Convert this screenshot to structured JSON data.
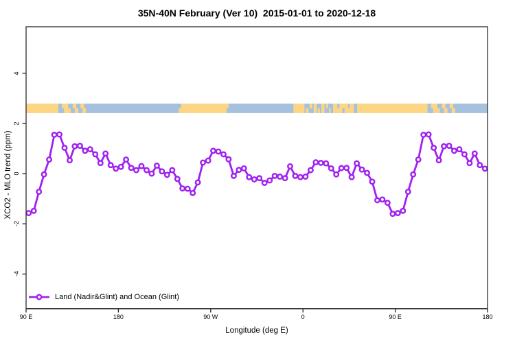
{
  "title": "35N-40N February (Ver 10)  2015-01-01 to 2020-12-18",
  "chart_data": {
    "type": "line",
    "title": "35N-40N February (Ver 10)  2015-01-01 to 2020-12-18",
    "xlabel": "Longitude (deg E)",
    "ylabel": "XCO2 - MLO trend (ppm)",
    "grid": false,
    "x_axis": {
      "lim": [
        90,
        540
      ],
      "note": "longitude axis wraps eastward from 90E through 180, 90W, 0, back to 90E and 180",
      "ticks": [
        {
          "deg": 90,
          "label": "90 E"
        },
        {
          "deg": 180,
          "label": "180"
        },
        {
          "deg": 270,
          "label": "90 W"
        },
        {
          "deg": 360,
          "label": "0"
        },
        {
          "deg": 450,
          "label": "90 E"
        },
        {
          "deg": 540,
          "label": "180"
        }
      ]
    },
    "y_axis": {
      "lim": [
        -5.38,
        5.85
      ],
      "ticks": [
        {
          "v": 4,
          "label": "4"
        },
        {
          "v": 2,
          "label": "2"
        },
        {
          "v": 0,
          "label": "0"
        },
        {
          "v": -2,
          "label": "-2"
        },
        {
          "v": -4,
          "label": "-4"
        }
      ]
    },
    "series": [
      {
        "name": "Land (Nadir&Glint) and Ocean (Glint)",
        "color": "#A020F0",
        "marker": "open-circle",
        "x_start_deg": 92.5,
        "x_step_deg": 5,
        "values": [
          -1.57,
          -1.48,
          -0.72,
          -0.03,
          0.56,
          1.55,
          1.56,
          1.03,
          0.53,
          1.09,
          1.11,
          0.91,
          0.97,
          0.77,
          0.42,
          0.8,
          0.34,
          0.2,
          0.27,
          0.56,
          0.23,
          0.14,
          0.3,
          0.14,
          0.0,
          0.32,
          0.09,
          -0.05,
          0.14,
          -0.21,
          -0.59,
          -0.6,
          -0.77,
          -0.35,
          0.44,
          0.52,
          0.91,
          0.88,
          0.77,
          0.57,
          -0.09,
          0.15,
          0.21,
          -0.14,
          -0.23,
          -0.18,
          -0.37,
          -0.27,
          -0.09,
          -0.12,
          -0.18,
          0.29,
          -0.09,
          -0.14,
          -0.12,
          0.14,
          0.45,
          0.43,
          0.41,
          0.21,
          -0.03,
          0.22,
          0.23,
          -0.14,
          0.41,
          0.16,
          0.03,
          -0.32,
          -1.06,
          -1.03,
          -1.16,
          -1.6,
          -1.57,
          -1.48,
          -0.72,
          -0.03,
          0.56,
          1.55,
          1.56,
          1.03,
          0.53,
          1.09,
          1.11,
          0.91,
          0.97,
          0.77,
          0.42,
          0.8,
          0.34,
          0.2
        ]
      }
    ],
    "map_band": {
      "description": "land/ocean strip at 35N-40N along the longitude axis",
      "value_range": [
        2.41,
        2.79
      ],
      "ocean_color": "#a6c1dd",
      "land_color": "#fcd685",
      "land_segments": [
        {
          "from": 90,
          "to": 121.5,
          "part": "full"
        },
        {
          "from": 124.8,
          "to": 131,
          "part": "top"
        },
        {
          "from": 127,
          "to": 133.5,
          "part": "bottom"
        },
        {
          "from": 135.5,
          "to": 139,
          "part": "top"
        },
        {
          "from": 137.5,
          "to": 140.9,
          "part": "bottom"
        },
        {
          "from": 143,
          "to": 146.5,
          "part": "top"
        },
        {
          "from": 145,
          "to": 148.5,
          "part": "bottom"
        },
        {
          "from": 238.8,
          "to": 241,
          "part": "bottom"
        },
        {
          "from": 241,
          "to": 285.5,
          "part": "full"
        },
        {
          "from": 285.5,
          "to": 287.5,
          "part": "top"
        },
        {
          "from": 350.7,
          "to": 361.5,
          "part": "full"
        },
        {
          "from": 363,
          "to": 365.5,
          "part": "bottom"
        },
        {
          "from": 366.5,
          "to": 369,
          "part": "top"
        },
        {
          "from": 370.5,
          "to": 373.5,
          "part": "full"
        },
        {
          "from": 374.5,
          "to": 376.5,
          "part": "bottom"
        },
        {
          "from": 378,
          "to": 381,
          "part": "full"
        },
        {
          "from": 382.5,
          "to": 384.5,
          "part": "top"
        },
        {
          "from": 385.5,
          "to": 387,
          "part": "bottom"
        },
        {
          "from": 389.4,
          "to": 409.7,
          "part": "full"
        },
        {
          "from": 412.9,
          "to": 481.5,
          "part": "full"
        },
        {
          "from": 484.8,
          "to": 491,
          "part": "top"
        },
        {
          "from": 487,
          "to": 493.5,
          "part": "bottom"
        },
        {
          "from": 495.5,
          "to": 499,
          "part": "top"
        },
        {
          "from": 497.5,
          "to": 500.9,
          "part": "bottom"
        },
        {
          "from": 503,
          "to": 506.5,
          "part": "top"
        },
        {
          "from": 505,
          "to": 508.5,
          "part": "bottom"
        }
      ],
      "ocean_speckles": [
        {
          "from": 393.5,
          "to": 395.5,
          "part": "top"
        },
        {
          "from": 398.5,
          "to": 400.5,
          "part": "bottom"
        },
        {
          "from": 404,
          "to": 405.5,
          "part": "top"
        }
      ]
    },
    "legend": {
      "position": "bottom-left",
      "entries": [
        {
          "label": "Land (Nadir&Glint) and Ocean (Glint)",
          "color": "#A020F0",
          "marker": "open-circle"
        }
      ]
    }
  }
}
